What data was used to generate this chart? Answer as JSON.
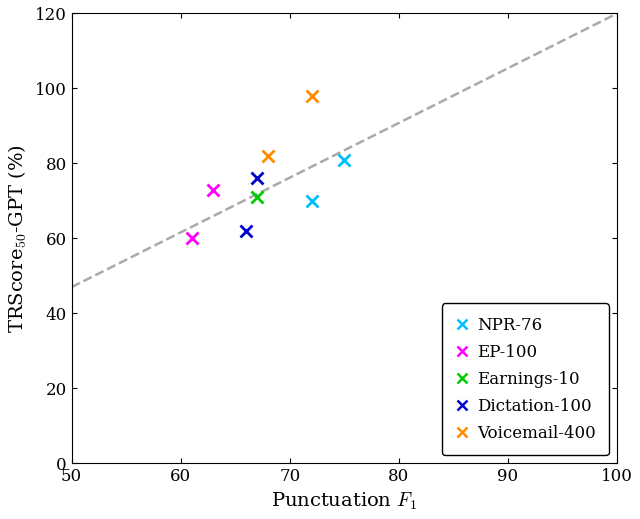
{
  "series": [
    {
      "label": "NPR-76",
      "color": "#00BFFF",
      "marker": "x",
      "points": [
        [
          75,
          81
        ],
        [
          72,
          70
        ]
      ]
    },
    {
      "label": "EP-100",
      "color": "#FF00FF",
      "marker": "x",
      "points": [
        [
          61,
          60
        ],
        [
          63,
          73
        ]
      ]
    },
    {
      "label": "Earnings-10",
      "color": "#00CC00",
      "marker": "x",
      "points": [
        [
          67,
          71
        ]
      ]
    },
    {
      "label": "Dictation-100",
      "color": "#0000CC",
      "marker": "x",
      "points": [
        [
          66,
          62
        ],
        [
          67,
          76
        ]
      ]
    },
    {
      "label": "Voicemail-400",
      "color": "#FF8C00",
      "marker": "x",
      "points": [
        [
          68,
          82
        ],
        [
          72,
          98
        ]
      ]
    }
  ],
  "dashed_line": {
    "x": [
      50,
      100
    ],
    "y": [
      47,
      120
    ],
    "color": "#AAAAAA",
    "linewidth": 1.8,
    "linestyle": "--"
  },
  "xlim": [
    50,
    100
  ],
  "ylim": [
    0,
    120
  ],
  "xticks": [
    50,
    60,
    70,
    80,
    90,
    100
  ],
  "yticks": [
    0,
    20,
    40,
    60,
    80,
    100,
    120
  ],
  "xlabel": "Punctuation $F_1$",
  "ylabel": "TRScore$_{50}$-GPT (%)",
  "legend_loc": "lower right",
  "markersize": 8,
  "markeredgewidth": 2.0,
  "tick_fontsize": 12,
  "label_fontsize": 14,
  "legend_fontsize": 12
}
